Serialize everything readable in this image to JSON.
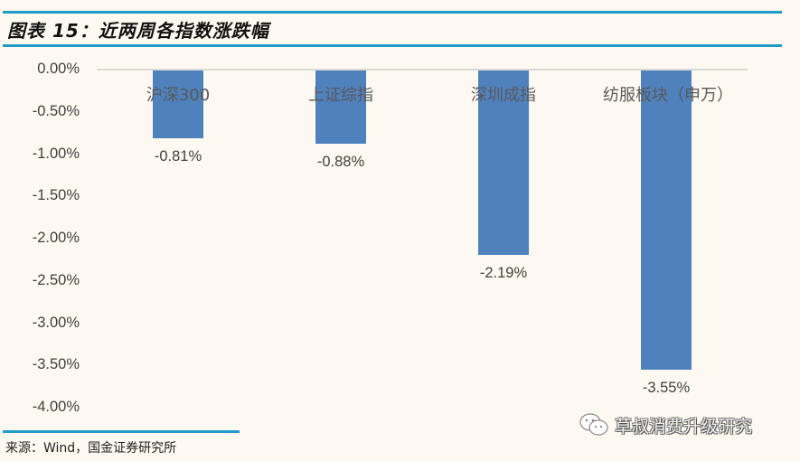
{
  "header": {
    "title": "图表 15：近两周各指数涨跌幅"
  },
  "footer": {
    "source": "来源：Wind，国金证券研究所"
  },
  "watermark": {
    "icon": "wechat-icon",
    "text": "草叔消费升级研究"
  },
  "colors": {
    "bar": "#4f81bd",
    "rule": "#1f9ac9",
    "background": "#fdf9f0",
    "axis": "#d9d9d9"
  },
  "chart_data": {
    "type": "bar",
    "title": "近两周各指数涨跌幅",
    "categories": [
      "沪深300",
      "上证综指",
      "深圳成指",
      "纺服板块（申万）"
    ],
    "values": [
      -0.81,
      -0.88,
      -2.19,
      -3.55
    ],
    "value_labels": [
      "-0.81%",
      "-0.88%",
      "-2.19%",
      "-3.55%"
    ],
    "xlabel": "",
    "ylabel": "",
    "ylim": [
      -4.0,
      0.0
    ],
    "yticks": [
      "0.00%",
      "-0.50%",
      "-1.00%",
      "-1.50%",
      "-2.00%",
      "-2.50%",
      "-3.00%",
      "-3.50%",
      "-4.00%"
    ],
    "grid": false,
    "legend": "none",
    "category_label_position": "top, near zero axis"
  }
}
